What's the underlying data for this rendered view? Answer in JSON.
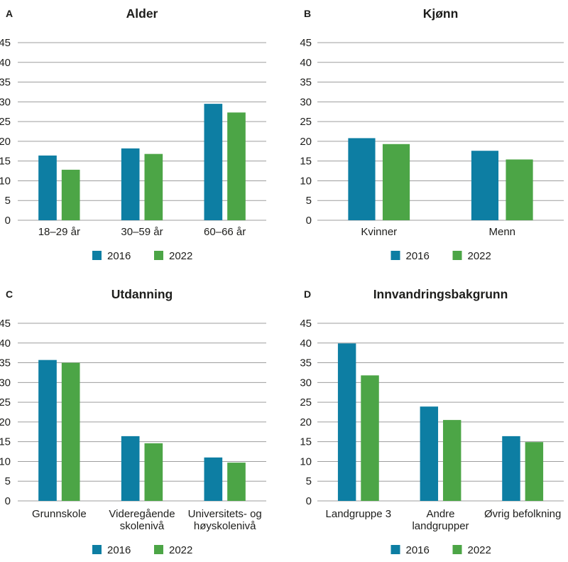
{
  "figure": {
    "background": "#ffffff",
    "text_color": "#1d1d1b",
    "grid_color": "#9d9d9d",
    "legend_labels": [
      "2016",
      "2022"
    ],
    "series_colors": {
      "2016": "#0d7ea3",
      "2022": "#4ca546"
    }
  },
  "chart_data": [
    {
      "type": "bar",
      "panel_letter": "A",
      "title": "Alder",
      "categories": [
        "18–29 år",
        "30–59 år",
        "60–66 år"
      ],
      "series": [
        {
          "name": "2016",
          "color": "#0d7ea3",
          "values": [
            16.4,
            18.2,
            29.5
          ]
        },
        {
          "name": "2022",
          "color": "#4ca546",
          "values": [
            12.8,
            16.8,
            27.3
          ]
        }
      ],
      "ylim": [
        0,
        45
      ],
      "ytick_step": 5,
      "grid": true,
      "legend_position": "bottom",
      "legend": [
        "2016",
        "2022"
      ]
    },
    {
      "type": "bar",
      "panel_letter": "B",
      "title": "Kjønn",
      "categories": [
        "Kvinner",
        "Menn"
      ],
      "series": [
        {
          "name": "2016",
          "color": "#0d7ea3",
          "values": [
            20.8,
            17.6
          ]
        },
        {
          "name": "2022",
          "color": "#4ca546",
          "values": [
            19.3,
            15.4
          ]
        }
      ],
      "ylim": [
        0,
        45
      ],
      "ytick_step": 5,
      "grid": true,
      "legend_position": "bottom",
      "legend": [
        "2016",
        "2022"
      ]
    },
    {
      "type": "bar",
      "panel_letter": "C",
      "title": "Utdanning",
      "categories": [
        "Grunnskole",
        "Videregående\nskolenivå",
        "Universitets- og\nhøyskolenivå"
      ],
      "series": [
        {
          "name": "2016",
          "color": "#0d7ea3",
          "values": [
            35.7,
            16.4,
            11.0
          ]
        },
        {
          "name": "2022",
          "color": "#4ca546",
          "values": [
            35.0,
            14.6,
            9.7
          ]
        }
      ],
      "ylim": [
        0,
        45
      ],
      "ytick_step": 5,
      "grid": true,
      "legend_position": "bottom",
      "legend": [
        "2016",
        "2022"
      ]
    },
    {
      "type": "bar",
      "panel_letter": "D",
      "title": "Innvandringsbakgrunn",
      "categories": [
        "Landgruppe 3",
        "Andre\nlandgrupper",
        "Øvrig befolkning"
      ],
      "series": [
        {
          "name": "2016",
          "color": "#0d7ea3",
          "values": [
            39.9,
            23.9,
            16.4
          ]
        },
        {
          "name": "2022",
          "color": "#4ca546",
          "values": [
            31.8,
            20.5,
            14.9
          ]
        }
      ],
      "ylim": [
        0,
        45
      ],
      "ytick_step": 5,
      "grid": true,
      "legend_position": "bottom",
      "legend": [
        "2016",
        "2022"
      ]
    }
  ]
}
